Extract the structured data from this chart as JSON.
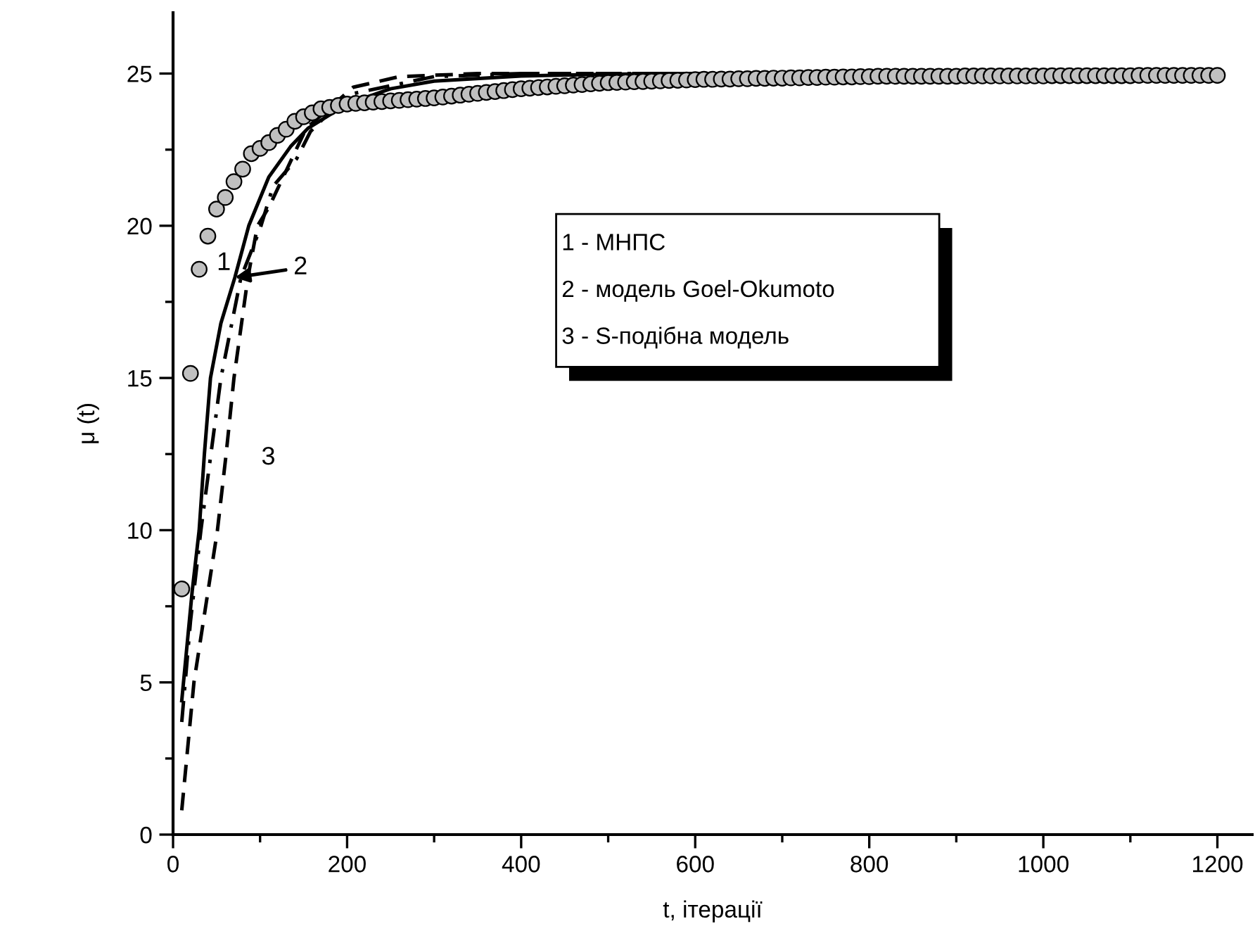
{
  "chart_data": {
    "type": "line",
    "xlabel": "t, ітерації",
    "ylabel": "μ (t)",
    "xlim": [
      0,
      1240
    ],
    "ylim": [
      0,
      27
    ],
    "xticks": [
      0,
      200,
      400,
      600,
      800,
      1000,
      1200
    ],
    "yticks": [
      0,
      5,
      10,
      15,
      20,
      25
    ],
    "grid": false,
    "legend": false,
    "series": [
      {
        "type": "scatter",
        "marker": "circle",
        "color": "#c0c0c0",
        "x": [
          10,
          20,
          30,
          40,
          50,
          60,
          70,
          80,
          90,
          100,
          110,
          120,
          130,
          140,
          150,
          160,
          170,
          180,
          190,
          200,
          210,
          220,
          230,
          240,
          250,
          260,
          270,
          280,
          290,
          300,
          310,
          320,
          330,
          340,
          350,
          360,
          370,
          380,
          390,
          400,
          410,
          420,
          430,
          440,
          450,
          460,
          470,
          480,
          490,
          500,
          510,
          520,
          530,
          540,
          550,
          560,
          570,
          580,
          590,
          600,
          610,
          620,
          630,
          640,
          650,
          660,
          670,
          680,
          690,
          700,
          710,
          720,
          730,
          740,
          750,
          760,
          770,
          780,
          790,
          800,
          810,
          820,
          830,
          840,
          850,
          860,
          870,
          880,
          890,
          900,
          910,
          920,
          930,
          940,
          950,
          960,
          970,
          980,
          990,
          1000,
          1010,
          1020,
          1030,
          1040,
          1050,
          1060,
          1070,
          1080,
          1090,
          1100,
          1110,
          1120,
          1130,
          1140,
          1150,
          1160,
          1170,
          1180,
          1190,
          1200
        ],
        "values": [
          8.07,
          15.15,
          18.57,
          19.66,
          20.55,
          20.93,
          21.45,
          21.86,
          22.37,
          22.54,
          22.73,
          22.97,
          23.17,
          23.43,
          23.58,
          23.71,
          23.84,
          23.89,
          23.95,
          24.0,
          24.02,
          24.04,
          24.06,
          24.08,
          24.1,
          24.12,
          24.14,
          24.16,
          24.18,
          24.2,
          24.23,
          24.26,
          24.29,
          24.32,
          24.35,
          24.38,
          24.41,
          24.44,
          24.47,
          24.5,
          24.52,
          24.54,
          24.56,
          24.58,
          24.6,
          24.62,
          24.64,
          24.66,
          24.68,
          24.7,
          24.71,
          24.72,
          24.73,
          24.74,
          24.75,
          24.76,
          24.77,
          24.78,
          24.79,
          24.8,
          24.81,
          24.81,
          24.82,
          24.82,
          24.83,
          24.83,
          24.84,
          24.84,
          24.85,
          24.85,
          24.86,
          24.86,
          24.87,
          24.87,
          24.88,
          24.88,
          24.89,
          24.89,
          24.9,
          24.9,
          24.91,
          24.91,
          24.91,
          24.91,
          24.91,
          24.91,
          24.91,
          24.91,
          24.91,
          24.91,
          24.92,
          24.92,
          24.92,
          24.92,
          24.92,
          24.92,
          24.92,
          24.92,
          24.92,
          24.92,
          24.93,
          24.93,
          24.93,
          24.93,
          24.93,
          24.93,
          24.93,
          24.93,
          24.93,
          24.93,
          24.94,
          24.94,
          24.94,
          24.94,
          24.94,
          24.94,
          24.94,
          24.94,
          24.94,
          24.94
        ]
      },
      {
        "line_style": "solid",
        "color": "#000000",
        "x": [
          10,
          22,
          30,
          36,
          43,
          55,
          71,
          87,
          110,
          135,
          155,
          200,
          250,
          300,
          400,
          500,
          600,
          1200
        ],
        "values": [
          4.4,
          8,
          10,
          12.5,
          15,
          16.8,
          18.3,
          20,
          21.6,
          22.6,
          23.2,
          24.0,
          24.5,
          24.75,
          24.92,
          24.98,
          25,
          25
        ]
      },
      {
        "line_style": "dashed",
        "color": "#000000",
        "x": [
          10,
          24,
          51,
          61,
          70,
          86,
          97,
          110,
          153,
          207,
          260,
          350,
          1200
        ],
        "values": [
          0.8,
          5,
          10,
          12.5,
          15,
          18.3,
          20,
          20.6,
          23.2,
          24.55,
          24.9,
          25,
          25
        ]
      },
      {
        "line_style": "dashdot",
        "color": "#000000",
        "x": [
          10,
          20,
          32,
          55,
          78,
          100,
          115,
          142,
          158,
          200,
          300,
          400,
          1200
        ],
        "values": [
          3.7,
          7,
          10,
          15,
          18.3,
          19.9,
          21.3,
          22.2,
          23.1,
          24.3,
          24.9,
          25,
          25
        ]
      }
    ],
    "annotations": [
      "1 - МНПС",
      "2 - модель Goel-Okumoto",
      "3 - S-подібна модель",
      {
        "text": "1",
        "x": 30,
        "y": 18.57
      },
      {
        "text": "2",
        "x": 71,
        "y": 18.3
      },
      {
        "text": "3",
        "x": 61,
        "y": 12.5
      }
    ]
  }
}
